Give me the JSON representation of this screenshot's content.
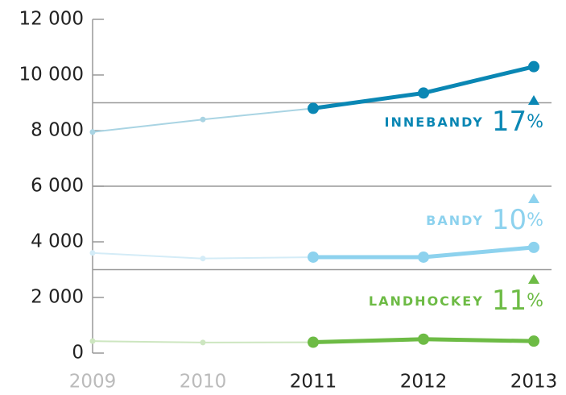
{
  "chart_data": {
    "type": "line",
    "categories": [
      "2009",
      "2010",
      "2011",
      "2012",
      "2013"
    ],
    "highlight_from": "2011",
    "ylim": [
      0,
      12000
    ],
    "yticks": [
      0,
      {
        "value": 2000,
        "label": "2 000"
      },
      {
        "value": 4000,
        "label": "4 000"
      },
      {
        "value": 6000,
        "label": "6 000"
      },
      {
        "value": 8000,
        "label": "8 000"
      },
      {
        "value": 10000,
        "label": "10 000"
      },
      {
        "value": 12000,
        "label": "12 000"
      }
    ],
    "separators": [
      3000,
      6000,
      9000
    ],
    "change_unit": "%",
    "series": [
      {
        "name": "INNEBANDY",
        "color": "#0a87b4",
        "faded_color": "#a9d4e3",
        "values": [
          7950,
          8400,
          8800,
          9350,
          10300
        ],
        "change": 17
      },
      {
        "name": "BANDY",
        "color": "#8dd2ee",
        "faded_color": "#d4ecf7",
        "values": [
          3600,
          3400,
          3450,
          3450,
          3800
        ],
        "change": 10
      },
      {
        "name": "LANDHOCKEY",
        "color": "#6dbb45",
        "faded_color": "#cde6c0",
        "values": [
          430,
          380,
          390,
          500,
          430
        ],
        "change": 11
      }
    ]
  }
}
